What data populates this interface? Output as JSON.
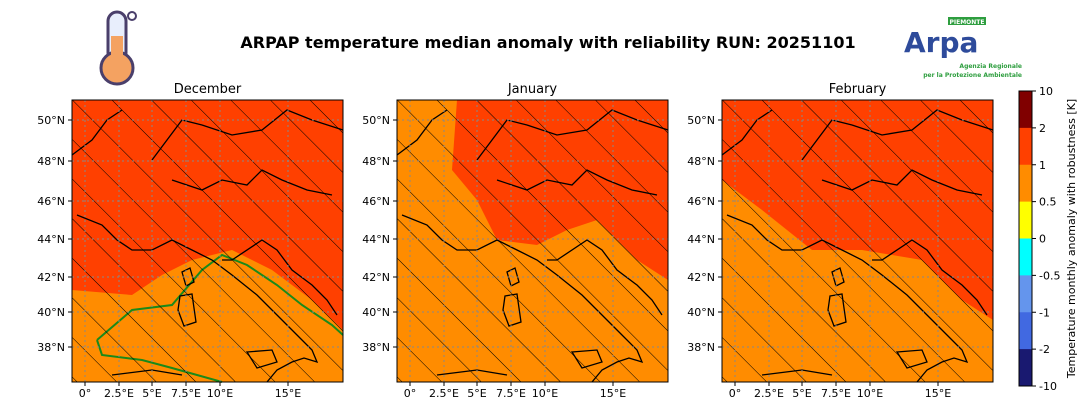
{
  "title": "ARPAP temperature median anomaly with reliability RUN: 20251101",
  "logo": {
    "text": "Arpa",
    "region": "PIEMONTE",
    "subtitle_1": "Agenzia Regionale",
    "subtitle_2": "per la Protezione Ambientale"
  },
  "icons": {
    "left": "thermometer-icon"
  },
  "chart_data": {
    "type": "heatmap",
    "title": "ARPAP temperature median anomaly with reliability RUN: 20251101",
    "panels": [
      {
        "title": "December",
        "dominant_class": "1 to 2",
        "secondary_class": "0.5 to 1",
        "hatched": true
      },
      {
        "title": "January",
        "dominant_class": "0.5 to 1",
        "secondary_class": "1 to 2",
        "hatched": true
      },
      {
        "title": "February",
        "dominant_class": "1 to 2",
        "secondary_class": "0.5 to 1",
        "hatched": true
      }
    ],
    "lat_ticks": [
      "50°N",
      "48°N",
      "46°N",
      "44°N",
      "42°N",
      "40°N",
      "38°N"
    ],
    "lon_ticks": [
      "0°",
      "2.5°E",
      "5°E",
      "7.5°E",
      "10°E",
      "15°E"
    ],
    "colorbar": {
      "label": "Temperature monthly anomaly with robustness [K]",
      "bounds": [
        "10",
        "2",
        "1",
        "0.5",
        "0",
        "-0.5",
        "-1",
        "-2",
        "-10"
      ],
      "colors": [
        "#800000",
        "#ff4000",
        "#ff8c00",
        "#ffff00",
        "#00ffff",
        "#6495ed",
        "#4169e1",
        "#191970"
      ]
    },
    "grid": true
  }
}
